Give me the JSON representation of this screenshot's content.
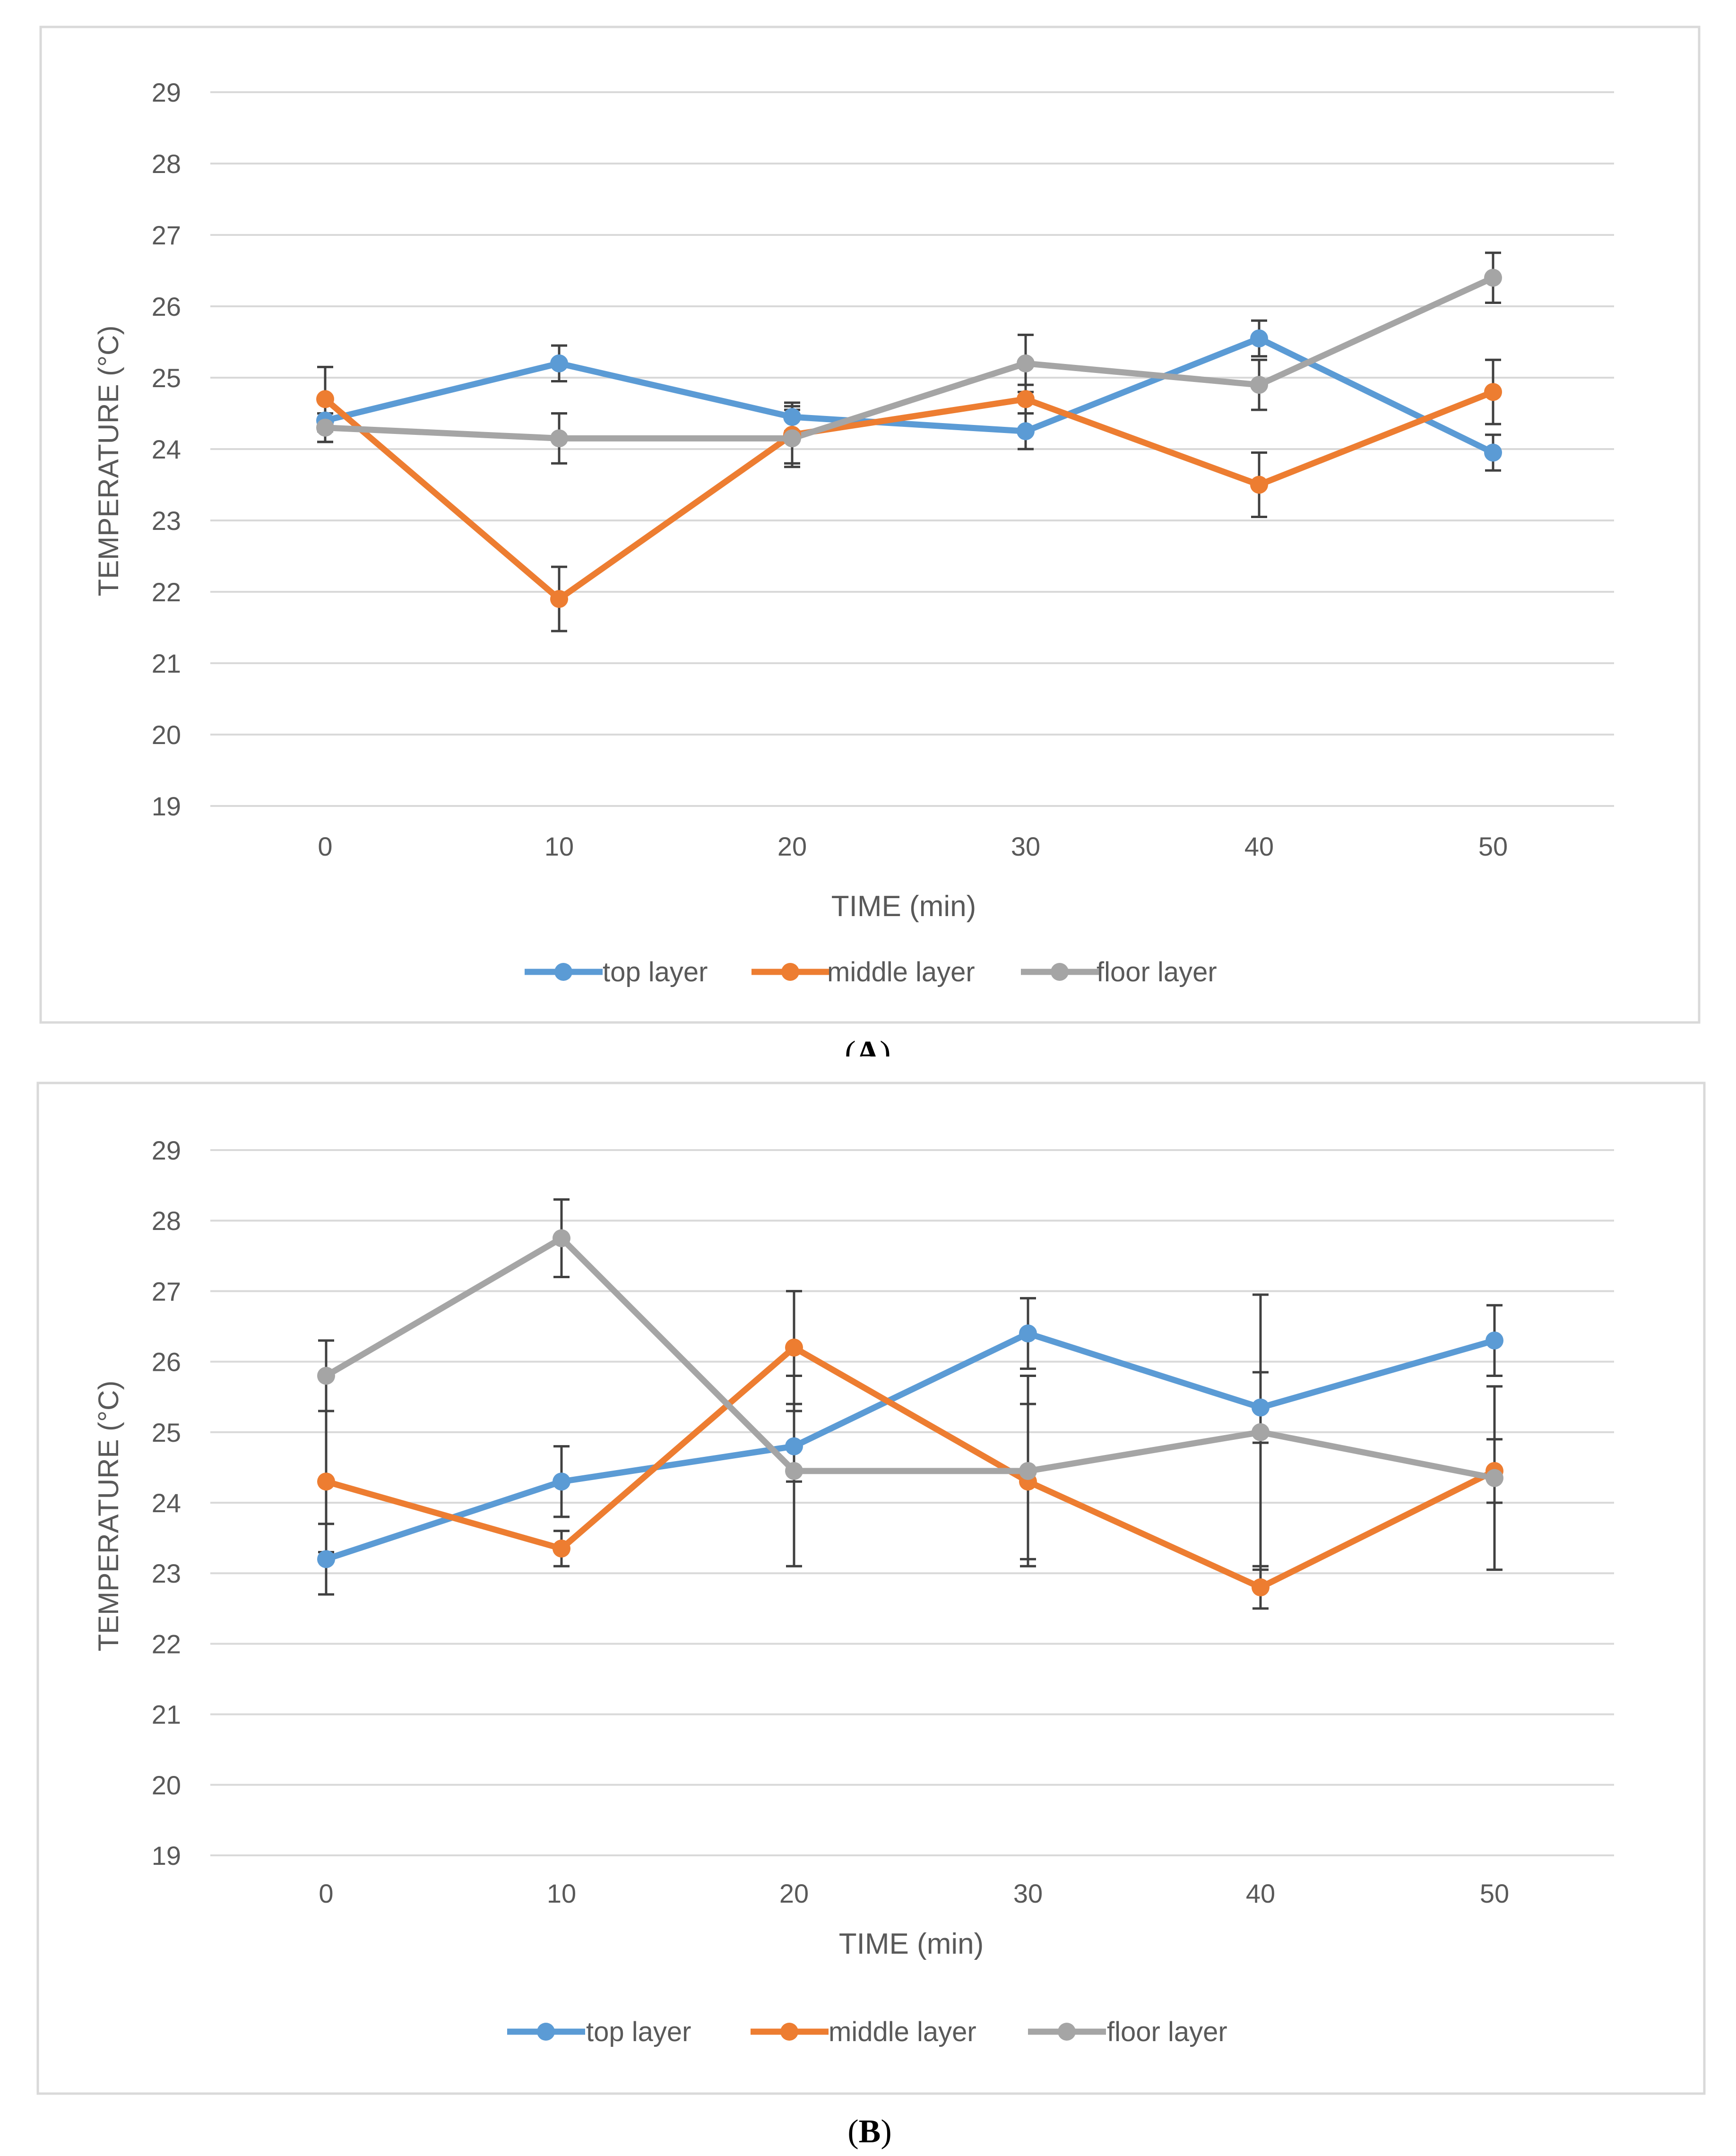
{
  "chart_data": [
    {
      "type": "line",
      "panel_label_open": "(",
      "panel_label": "A",
      "panel_label_close": ")",
      "xlabel": "TIME  (min)",
      "ylabel": "TEMPERATURE (°C)",
      "x": [
        0,
        10,
        20,
        30,
        40,
        50
      ],
      "x_tick_labels": [
        "0",
        "10",
        "20",
        "30",
        "40",
        "50"
      ],
      "ylim": [
        19,
        29
      ],
      "y_tick_labels": [
        "19",
        "20",
        "21",
        "22",
        "23",
        "24",
        "25",
        "26",
        "27",
        "28",
        "29"
      ],
      "grid": true,
      "legend_position": "bottom",
      "series": [
        {
          "name": "top layer",
          "color": "#5b9bd5",
          "values": [
            24.4,
            25.2,
            24.45,
            24.25,
            25.55,
            23.95
          ],
          "errors": [
            0.3,
            0.25,
            0.2,
            0.25,
            0.25,
            0.25
          ]
        },
        {
          "name": "middle layer",
          "color": "#ed7d31",
          "values": [
            24.7,
            21.9,
            24.2,
            24.7,
            23.5,
            24.8
          ],
          "errors": [
            0.45,
            0.45,
            0.4,
            0.2,
            0.45,
            0.45
          ]
        },
        {
          "name": "floor layer",
          "color": "#a5a5a5",
          "values": [
            24.3,
            24.15,
            24.15,
            25.2,
            24.9,
            26.4
          ],
          "errors": [
            0.2,
            0.35,
            0.4,
            0.4,
            0.35,
            0.35
          ]
        }
      ]
    },
    {
      "type": "line",
      "panel_label_open": "(",
      "panel_label": "B",
      "panel_label_close": ")",
      "xlabel": "TIME (min)",
      "ylabel": "TEMPERATURE (°C)",
      "x": [
        0,
        10,
        20,
        30,
        40,
        50
      ],
      "x_tick_labels": [
        "0",
        "10",
        "20",
        "30",
        "40",
        "50"
      ],
      "ylim": [
        19,
        29
      ],
      "y_tick_labels": [
        "19",
        "20",
        "21",
        "22",
        "23",
        "24",
        "25",
        "26",
        "27",
        "28",
        "29"
      ],
      "grid": true,
      "legend_position": "bottom",
      "series": [
        {
          "name": "top  layer",
          "color": "#5b9bd5",
          "values": [
            23.2,
            24.3,
            24.8,
            26.4,
            25.35,
            26.3
          ],
          "errors": [
            0.5,
            0.5,
            0.5,
            0.5,
            0.5,
            0.5
          ]
        },
        {
          "name": "middle layer",
          "color": "#ed7d31",
          "values": [
            24.3,
            23.35,
            26.2,
            24.3,
            22.8,
            24.45
          ],
          "errors": [
            1.0,
            0.25,
            0.8,
            1.1,
            0.3,
            0.45
          ]
        },
        {
          "name": "floor layer",
          "color": "#a5a5a5",
          "values": [
            25.8,
            27.75,
            24.45,
            24.45,
            25.0,
            24.35
          ],
          "errors": [
            0.5,
            0.55,
            1.35,
            1.35,
            1.95,
            1.3
          ]
        }
      ]
    }
  ]
}
